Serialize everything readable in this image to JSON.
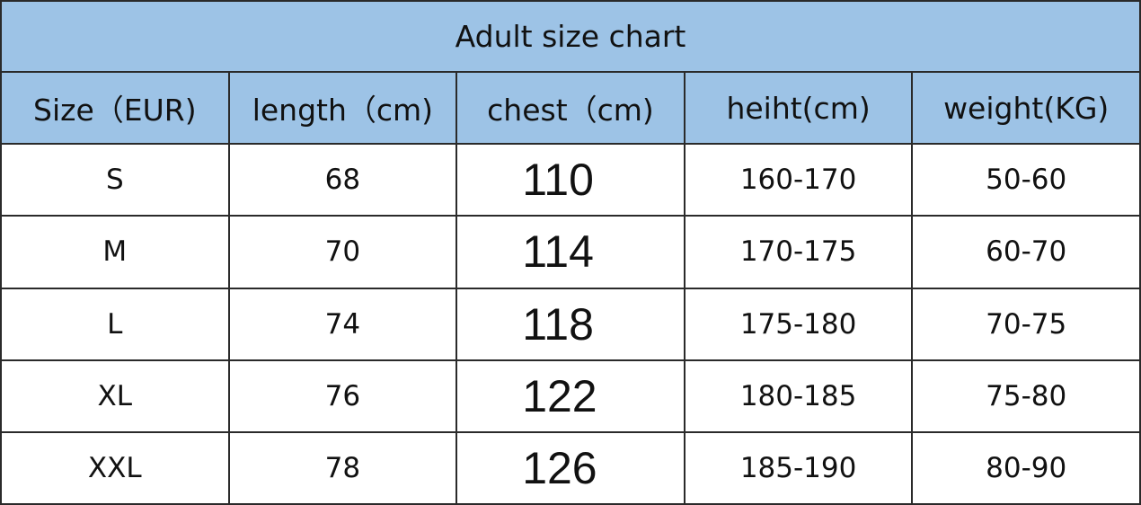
{
  "title": "Adult size chart",
  "colors": {
    "header_bg": "#9dc3e6",
    "border": "#2a2a2a"
  },
  "columns": [
    "Size（EUR)",
    "length（cm)",
    "chest（cm)",
    "heiht(cm)",
    "weight(KG)"
  ],
  "rows": [
    [
      "S",
      "68",
      "110",
      "160-170",
      "50-60"
    ],
    [
      "M",
      "70",
      "114",
      "170-175",
      "60-70"
    ],
    [
      "L",
      "74",
      "118",
      "175-180",
      "70-75"
    ],
    [
      "XL",
      "76",
      "122",
      "180-185",
      "75-80"
    ],
    [
      "XXL",
      "78",
      "126",
      "185-190",
      "80-90"
    ]
  ]
}
